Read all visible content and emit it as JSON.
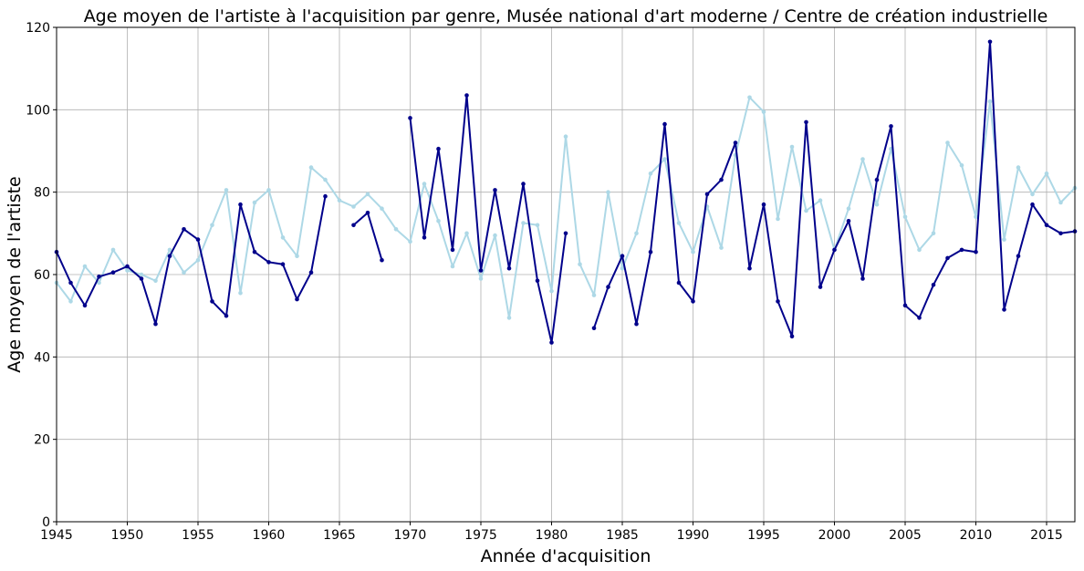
{
  "chart_data": {
    "type": "line",
    "title": "Age moyen de l'artiste à l'acquisition par genre, Musée national d'art moderne / Centre de création industrielle",
    "xlabel": "Année d'acquisition",
    "ylabel": "Age moyen de l'artiste",
    "xlim": [
      1945,
      2017
    ],
    "ylim": [
      0,
      120
    ],
    "grid": true,
    "xticks": [
      1945,
      1950,
      1955,
      1960,
      1965,
      1970,
      1975,
      1980,
      1985,
      1990,
      1995,
      2000,
      2005,
      2010,
      2015
    ],
    "yticks": [
      0,
      20,
      40,
      60,
      80,
      100,
      120
    ],
    "x": [
      1945,
      1946,
      1947,
      1948,
      1949,
      1950,
      1951,
      1952,
      1953,
      1954,
      1955,
      1956,
      1957,
      1958,
      1959,
      1960,
      1961,
      1962,
      1963,
      1964,
      1965,
      1966,
      1967,
      1968,
      1969,
      1970,
      1971,
      1972,
      1973,
      1974,
      1975,
      1976,
      1977,
      1978,
      1979,
      1980,
      1981,
      1982,
      1983,
      1984,
      1985,
      1986,
      1987,
      1988,
      1989,
      1990,
      1991,
      1992,
      1993,
      1994,
      1995,
      1996,
      1997,
      1998,
      1999,
      2000,
      2001,
      2002,
      2003,
      2004,
      2005,
      2006,
      2007,
      2008,
      2009,
      2010,
      2011,
      2012,
      2013,
      2014,
      2015,
      2016,
      2017
    ],
    "series": [
      {
        "color": "#00008b",
        "values": [
          65.5,
          58.0,
          52.5,
          59.5,
          60.5,
          62.0,
          59.0,
          48.0,
          64.5,
          71.0,
          68.5,
          53.5,
          50.0,
          77.0,
          65.5,
          63.0,
          62.5,
          54.0,
          60.5,
          79.0,
          null,
          72.0,
          75.0,
          63.5,
          null,
          98.0,
          69.0,
          90.5,
          66.0,
          103.5,
          61.0,
          80.5,
          61.5,
          82.0,
          58.5,
          43.5,
          70.0,
          null,
          47.0,
          57.0,
          64.5,
          48.0,
          65.5,
          96.5,
          58.0,
          53.5,
          79.5,
          83.0,
          92.0,
          61.5,
          77.0,
          53.5,
          45.0,
          97.0,
          57.0,
          66.0,
          73.0,
          59.0,
          83.0,
          96.0,
          52.5,
          49.5,
          57.5,
          64.0,
          66.0,
          65.5,
          116.5,
          51.5,
          64.5,
          77.0,
          72.0,
          70.0,
          70.5
        ]
      },
      {
        "color": "#add8e6",
        "values": [
          58.0,
          53.5,
          62.0,
          58.0,
          66.0,
          61.0,
          60.0,
          58.5,
          66.0,
          60.5,
          63.5,
          72.0,
          80.5,
          55.5,
          77.5,
          80.5,
          69.0,
          64.5,
          86.0,
          83.0,
          78.0,
          76.5,
          79.5,
          76.0,
          71.0,
          68.0,
          82.0,
          73.0,
          62.0,
          70.0,
          59.0,
          69.5,
          49.5,
          72.5,
          72.0,
          56.0,
          93.5,
          62.5,
          55.0,
          80.0,
          61.5,
          70.0,
          84.5,
          88.0,
          72.5,
          65.5,
          76.5,
          66.5,
          89.0,
          103.0,
          99.5,
          73.5,
          91.0,
          75.5,
          78.0,
          66.0,
          76.0,
          88.0,
          77.0,
          90.5,
          74.0,
          66.0,
          70.0,
          92.0,
          86.5,
          74.0,
          102.0,
          68.5,
          86.0,
          79.5,
          84.5,
          77.5,
          81.0
        ]
      }
    ]
  }
}
